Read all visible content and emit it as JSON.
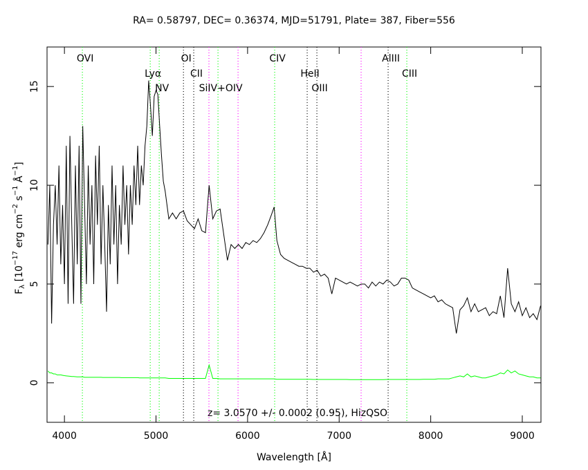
{
  "chart_data": {
    "type": "line",
    "title": "RA= 0.58797, DEC= 0.36374, MJD=51791, Plate= 387, Fiber=556",
    "x_label": "Wavelength [Å]",
    "y_label": [
      "F",
      "λ",
      " [10",
      "−17",
      " erg cm",
      "−2",
      " s",
      "−1",
      " Å",
      "−1",
      "]"
    ],
    "annotation": "z= 3.0570 +/- 0.0002 (0.95), HizQSO",
    "xlim": [
      3810,
      9204
    ],
    "ylim": [
      -2,
      17
    ],
    "xticks": [
      4000,
      5000,
      6000,
      7000,
      8000,
      9000
    ],
    "yticks": [
      0,
      5,
      10,
      15
    ],
    "x": [
      3820,
      3840,
      3860,
      3880,
      3900,
      3920,
      3940,
      3960,
      3980,
      4000,
      4020,
      4040,
      4060,
      4080,
      4100,
      4120,
      4140,
      4160,
      4180,
      4200,
      4220,
      4240,
      4260,
      4280,
      4300,
      4320,
      4340,
      4360,
      4380,
      4400,
      4420,
      4440,
      4460,
      4480,
      4500,
      4520,
      4540,
      4560,
      4580,
      4600,
      4620,
      4640,
      4660,
      4680,
      4700,
      4720,
      4740,
      4760,
      4780,
      4800,
      4820,
      4840,
      4860,
      4880,
      4900,
      4920,
      4940,
      4960,
      4980,
      5000,
      5020,
      5040,
      5060,
      5080,
      5100,
      5140,
      5180,
      5220,
      5260,
      5300,
      5340,
      5380,
      5420,
      5460,
      5500,
      5540,
      5580,
      5620,
      5660,
      5700,
      5740,
      5780,
      5820,
      5860,
      5900,
      5940,
      5980,
      6020,
      6060,
      6100,
      6140,
      6180,
      6220,
      6260,
      6290,
      6320,
      6360,
      6400,
      6440,
      6480,
      6520,
      6560,
      6600,
      6640,
      6680,
      6720,
      6760,
      6800,
      6840,
      6880,
      6920,
      6960,
      7000,
      7040,
      7080,
      7120,
      7160,
      7200,
      7240,
      7280,
      7320,
      7360,
      7400,
      7440,
      7480,
      7520,
      7560,
      7600,
      7640,
      7680,
      7720,
      7760,
      7800,
      7840,
      7880,
      7920,
      7960,
      8000,
      8040,
      8080,
      8120,
      8160,
      8200,
      8240,
      8280,
      8320,
      8360,
      8400,
      8440,
      8480,
      8520,
      8560,
      8600,
      8640,
      8680,
      8720,
      8760,
      8800,
      8840,
      8880,
      8920,
      8960,
      9000,
      9040,
      9080,
      9120,
      9160,
      9200
    ],
    "series": [
      {
        "color": "#000000",
        "values": [
          7,
          10,
          3,
          8,
          10,
          7,
          11,
          6,
          9,
          5,
          12,
          4,
          12.5,
          8,
          4,
          11,
          6,
          12,
          4,
          13,
          9,
          5,
          11,
          7,
          10,
          5,
          11.5,
          8,
          12,
          6,
          10,
          7,
          3.6,
          9,
          6,
          11,
          7,
          10,
          5,
          9,
          7,
          11,
          8,
          10,
          6.5,
          10,
          8,
          11,
          9,
          12,
          9,
          11,
          10,
          12,
          13,
          15.3,
          14,
          12.5,
          14.5,
          14.8,
          14.6,
          13,
          11.5,
          10.2,
          9.7,
          8.3,
          8.6,
          8.3,
          8.6,
          8.7,
          8.2,
          8.0,
          7.8,
          8.3,
          7.7,
          7.6,
          10.0,
          8.3,
          8.7,
          8.8,
          7.5,
          6.2,
          7.0,
          6.8,
          7.0,
          6.8,
          7.1,
          7.0,
          7.2,
          7.1,
          7.3,
          7.6,
          8.0,
          8.5,
          8.9,
          7.2,
          6.5,
          6.3,
          6.2,
          6.1,
          6.0,
          5.9,
          5.9,
          5.8,
          5.8,
          5.6,
          5.7,
          5.4,
          5.5,
          5.3,
          4.5,
          5.3,
          5.2,
          5.1,
          5.0,
          5.1,
          5.0,
          4.9,
          5.0,
          5.0,
          4.8,
          5.1,
          4.9,
          5.1,
          5.0,
          5.2,
          5.1,
          4.9,
          5.0,
          5.3,
          5.3,
          5.2,
          4.8,
          4.7,
          4.6,
          4.5,
          4.4,
          4.3,
          4.4,
          4.1,
          4.2,
          4.0,
          3.9,
          3.8,
          2.5,
          3.7,
          3.9,
          4.3,
          3.6,
          4.0,
          3.6,
          3.7,
          3.8,
          3.4,
          3.6,
          3.5,
          4.4,
          3.3,
          5.8,
          4.0,
          3.6,
          4.1,
          3.4,
          3.8,
          3.3,
          3.5,
          3.2,
          3.9
        ]
      },
      {
        "color": "#00ff00",
        "values": [
          0.6,
          0.5,
          0.5,
          0.45,
          0.45,
          0.4,
          0.4,
          0.4,
          0.38,
          0.36,
          0.35,
          0.34,
          0.33,
          0.32,
          0.32,
          0.31,
          0.3,
          0.3,
          0.3,
          0.3,
          0.28,
          0.28,
          0.28,
          0.28,
          0.28,
          0.28,
          0.28,
          0.28,
          0.28,
          0.28,
          0.27,
          0.27,
          0.27,
          0.27,
          0.27,
          0.27,
          0.27,
          0.27,
          0.27,
          0.27,
          0.26,
          0.26,
          0.26,
          0.26,
          0.26,
          0.26,
          0.26,
          0.26,
          0.26,
          0.26,
          0.25,
          0.25,
          0.25,
          0.25,
          0.25,
          0.25,
          0.25,
          0.25,
          0.25,
          0.25,
          0.25,
          0.25,
          0.25,
          0.25,
          0.25,
          0.22,
          0.22,
          0.22,
          0.22,
          0.22,
          0.22,
          0.22,
          0.22,
          0.22,
          0.22,
          0.22,
          0.9,
          0.22,
          0.22,
          0.2,
          0.2,
          0.2,
          0.2,
          0.2,
          0.2,
          0.2,
          0.2,
          0.2,
          0.2,
          0.2,
          0.2,
          0.2,
          0.2,
          0.2,
          0.2,
          0.18,
          0.18,
          0.18,
          0.18,
          0.18,
          0.18,
          0.18,
          0.18,
          0.18,
          0.18,
          0.17,
          0.17,
          0.17,
          0.17,
          0.17,
          0.17,
          0.17,
          0.17,
          0.17,
          0.17,
          0.16,
          0.16,
          0.16,
          0.16,
          0.16,
          0.16,
          0.16,
          0.16,
          0.16,
          0.16,
          0.17,
          0.17,
          0.17,
          0.17,
          0.17,
          0.17,
          0.17,
          0.17,
          0.17,
          0.17,
          0.18,
          0.18,
          0.18,
          0.18,
          0.2,
          0.2,
          0.2,
          0.2,
          0.25,
          0.3,
          0.35,
          0.3,
          0.45,
          0.3,
          0.35,
          0.3,
          0.25,
          0.25,
          0.3,
          0.35,
          0.4,
          0.5,
          0.45,
          0.65,
          0.5,
          0.6,
          0.45,
          0.4,
          0.35,
          0.3,
          0.3,
          0.25,
          0.25
        ]
      }
    ],
    "lines": [
      {
        "x": 4196,
        "color": "#00ff00",
        "label": "OVI"
      },
      {
        "x": 4937,
        "color": "#00ff00",
        "label": "Lyα"
      },
      {
        "x": 5035,
        "color": "#00ff00",
        "label": "NV"
      },
      {
        "x": 5300,
        "color": "#000000",
        "label": "OI"
      },
      {
        "x": 5412,
        "color": "#000000",
        "label": "CII"
      },
      {
        "x": 5578,
        "color": "#ff00ff"
      },
      {
        "x": 5677,
        "color": "#00ff00",
        "label": "SiIV+OIV"
      },
      {
        "x": 5896,
        "color": "#ff00ff"
      },
      {
        "x": 6296,
        "color": "#00ff00",
        "label": "CIV"
      },
      {
        "x": 6651,
        "color": "#000000",
        "label": "HeII"
      },
      {
        "x": 6757,
        "color": "#000000",
        "label": "OIII"
      },
      {
        "x": 7240,
        "color": "#ff00ff"
      },
      {
        "x": 7535,
        "color": "#000000",
        "label": "AlIII"
      },
      {
        "x": 7739,
        "color": "#00ff00",
        "label": "CIII"
      }
    ]
  }
}
